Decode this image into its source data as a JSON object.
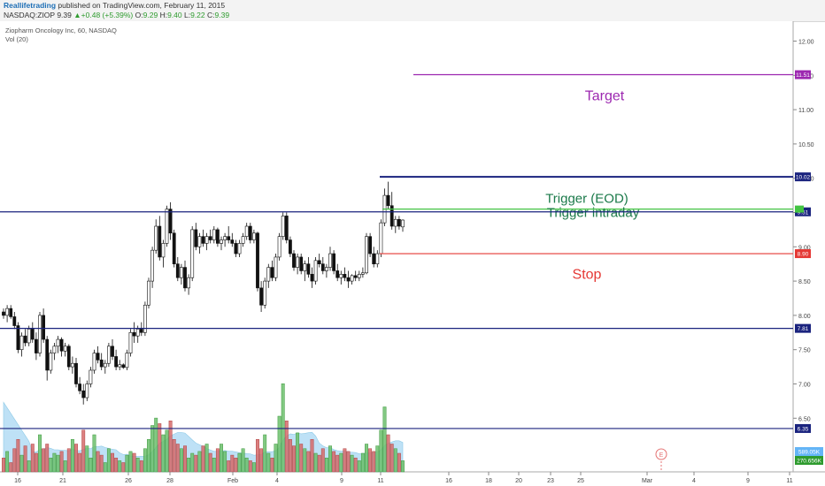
{
  "header": {
    "publisher": "Reallifetrading",
    "published_text": "published on TradingView.com, February 11, 2015",
    "symbol": "NASDAQ:ZIOP",
    "last": "9.39",
    "change": "+0.48 (+5.39%)",
    "o_label": "O:",
    "o_val": "9.29",
    "h_label": "H:",
    "h_val": "9.40",
    "l_label": "L:",
    "l_val": "9.22",
    "c_label": "C:",
    "c_val": "9.39"
  },
  "legend": {
    "instrument": "Ziopharm Oncology Inc, 60, NASDAQ",
    "volume": "Vol (20)"
  },
  "chart_data": {
    "type": "candlestick",
    "ylim": [
      6.05,
      12.5
    ],
    "yticks": [
      "12.00",
      "11.50",
      "11.00",
      "10.50",
      "10.00",
      "9.50",
      "9.00",
      "8.50",
      "8.00",
      "7.50",
      "7.00",
      "6.50"
    ],
    "xticks": [
      "16",
      "21",
      "26",
      "28",
      "Feb",
      "4",
      "9",
      "11",
      "16",
      "18",
      "20",
      "23",
      "25",
      "Mar",
      "4",
      "9",
      "11"
    ],
    "levels": [
      {
        "label": "Target",
        "price": 11.51,
        "badge": "11.51",
        "color": "#9c27b0"
      },
      {
        "label": "Trigger (EOD)",
        "price": 10.02,
        "badge": "10.02",
        "color": "#1a237e"
      },
      {
        "label": "Trigger intraday",
        "price": 9.55,
        "badge": "",
        "color": "#43c443"
      },
      {
        "label": "",
        "price": 9.51,
        "badge": "9.51",
        "color": "#1a237e"
      },
      {
        "label": "Stop",
        "price": 8.9,
        "badge": "8.90",
        "color": "#e53935"
      },
      {
        "label": "",
        "price": 7.81,
        "badge": "7.81",
        "color": "#1a237e"
      },
      {
        "label": "",
        "price": 6.35,
        "badge": "6.35",
        "color": "#1a237e"
      }
    ],
    "volume_badges": [
      {
        "text": "589.05K",
        "color": "#64b5f6"
      },
      {
        "text": "270.656K",
        "color": "#2e9b2e"
      }
    ],
    "earnings_marker": "E",
    "candles": [
      [
        8.05,
        8.1,
        7.95,
        8.0
      ],
      [
        8.0,
        8.15,
        7.9,
        8.1
      ],
      [
        8.1,
        8.15,
        7.95,
        7.98
      ],
      [
        7.98,
        8.05,
        7.8,
        7.85
      ],
      [
        7.85,
        7.9,
        7.45,
        7.5
      ],
      [
        7.5,
        7.75,
        7.4,
        7.7
      ],
      [
        7.7,
        7.8,
        7.55,
        7.6
      ],
      [
        7.6,
        7.85,
        7.55,
        7.8
      ],
      [
        7.8,
        7.9,
        7.6,
        7.65
      ],
      [
        7.65,
        7.75,
        7.35,
        7.45
      ],
      [
        7.45,
        8.05,
        7.4,
        8.0
      ],
      [
        8.0,
        8.1,
        7.6,
        7.65
      ],
      [
        7.65,
        7.7,
        7.05,
        7.2
      ],
      [
        7.2,
        7.5,
        7.15,
        7.45
      ],
      [
        7.45,
        7.6,
        7.35,
        7.55
      ],
      [
        7.55,
        7.7,
        7.45,
        7.65
      ],
      [
        7.65,
        7.68,
        7.4,
        7.48
      ],
      [
        7.48,
        7.6,
        7.4,
        7.55
      ],
      [
        7.55,
        7.58,
        7.2,
        7.25
      ],
      [
        7.25,
        7.4,
        7.15,
        7.3
      ],
      [
        7.3,
        7.38,
        6.95,
        7.0
      ],
      [
        7.0,
        7.1,
        6.85,
        6.9
      ],
      [
        6.9,
        7.0,
        6.7,
        6.8
      ],
      [
        6.8,
        7.05,
        6.75,
        7.0
      ],
      [
        7.0,
        7.25,
        6.95,
        7.2
      ],
      [
        7.2,
        7.5,
        7.15,
        7.45
      ],
      [
        7.45,
        7.55,
        7.3,
        7.35
      ],
      [
        7.35,
        7.45,
        7.2,
        7.25
      ],
      [
        7.25,
        7.35,
        7.15,
        7.3
      ],
      [
        7.3,
        7.6,
        7.25,
        7.55
      ],
      [
        7.55,
        7.65,
        7.35,
        7.4
      ],
      [
        7.4,
        7.5,
        7.2,
        7.25
      ],
      [
        7.25,
        7.35,
        7.2,
        7.28
      ],
      [
        7.28,
        7.3,
        7.22,
        7.24
      ],
      [
        7.24,
        7.5,
        7.2,
        7.45
      ],
      [
        7.45,
        7.8,
        7.4,
        7.75
      ],
      [
        7.75,
        7.9,
        7.6,
        7.7
      ],
      [
        7.7,
        7.85,
        7.6,
        7.8
      ],
      [
        7.8,
        7.9,
        7.7,
        7.75
      ],
      [
        7.75,
        8.2,
        7.7,
        8.15
      ],
      [
        8.15,
        8.55,
        8.1,
        8.5
      ],
      [
        8.5,
        9.0,
        8.4,
        8.95
      ],
      [
        8.95,
        9.4,
        8.9,
        9.3
      ],
      [
        9.3,
        9.45,
        8.8,
        8.85
      ],
      [
        8.85,
        9.1,
        8.7,
        9.05
      ],
      [
        9.05,
        9.6,
        9.0,
        9.55
      ],
      [
        9.55,
        9.65,
        9.1,
        9.2
      ],
      [
        9.2,
        9.25,
        8.7,
        8.75
      ],
      [
        8.75,
        8.85,
        8.5,
        8.55
      ],
      [
        8.55,
        8.75,
        8.45,
        8.7
      ],
      [
        8.7,
        8.8,
        8.35,
        8.4
      ],
      [
        8.4,
        8.6,
        8.3,
        8.55
      ],
      [
        8.55,
        9.3,
        8.5,
        9.25
      ],
      [
        9.25,
        9.35,
        8.95,
        9.0
      ],
      [
        9.0,
        9.2,
        8.9,
        9.15
      ],
      [
        9.15,
        9.25,
        9.0,
        9.05
      ],
      [
        9.05,
        9.2,
        8.95,
        9.15
      ],
      [
        9.15,
        9.25,
        9.05,
        9.1
      ],
      [
        9.1,
        9.3,
        9.05,
        9.25
      ],
      [
        9.25,
        9.28,
        9.0,
        9.05
      ],
      [
        9.05,
        9.15,
        8.95,
        9.1
      ],
      [
        9.1,
        9.2,
        9.0,
        9.15
      ],
      [
        9.15,
        9.3,
        9.05,
        9.1
      ],
      [
        9.1,
        9.2,
        9.0,
        9.05
      ],
      [
        9.05,
        9.1,
        8.85,
        8.9
      ],
      [
        8.9,
        9.1,
        8.85,
        9.05
      ],
      [
        9.05,
        9.2,
        9.0,
        9.15
      ],
      [
        9.15,
        9.35,
        9.1,
        9.3
      ],
      [
        9.3,
        9.35,
        9.05,
        9.1
      ],
      [
        9.1,
        9.25,
        9.05,
        9.2
      ],
      [
        9.2,
        9.22,
        8.35,
        8.4
      ],
      [
        8.4,
        8.5,
        8.05,
        8.15
      ],
      [
        8.15,
        8.55,
        8.1,
        8.5
      ],
      [
        8.5,
        8.75,
        8.4,
        8.7
      ],
      [
        8.7,
        8.8,
        8.5,
        8.55
      ],
      [
        8.55,
        8.9,
        8.5,
        8.85
      ],
      [
        8.85,
        9.2,
        8.8,
        9.15
      ],
      [
        9.15,
        9.5,
        9.1,
        9.45
      ],
      [
        9.45,
        9.5,
        9.05,
        9.1
      ],
      [
        9.1,
        9.15,
        8.85,
        8.9
      ],
      [
        8.9,
        8.95,
        8.65,
        8.7
      ],
      [
        8.7,
        8.9,
        8.6,
        8.85
      ],
      [
        8.85,
        8.9,
        8.6,
        8.65
      ],
      [
        8.65,
        8.8,
        8.5,
        8.75
      ],
      [
        8.75,
        8.85,
        8.55,
        8.6
      ],
      [
        8.6,
        8.7,
        8.4,
        8.5
      ],
      [
        8.5,
        8.85,
        8.45,
        8.8
      ],
      [
        8.8,
        8.9,
        8.7,
        8.75
      ],
      [
        8.75,
        8.85,
        8.6,
        8.65
      ],
      [
        8.65,
        8.75,
        8.55,
        8.7
      ],
      [
        8.7,
        9.0,
        8.65,
        8.9
      ],
      [
        8.9,
        8.95,
        8.6,
        8.65
      ],
      [
        8.65,
        8.75,
        8.5,
        8.55
      ],
      [
        8.55,
        8.65,
        8.45,
        8.6
      ],
      [
        8.6,
        8.7,
        8.5,
        8.55
      ],
      [
        8.55,
        8.65,
        8.4,
        8.5
      ],
      [
        8.5,
        8.6,
        8.45,
        8.58
      ],
      [
        8.58,
        8.65,
        8.5,
        8.55
      ],
      [
        8.55,
        8.65,
        8.5,
        8.6
      ],
      [
        8.6,
        8.7,
        8.55,
        8.62
      ],
      [
        8.62,
        9.2,
        8.6,
        9.15
      ],
      [
        9.15,
        9.2,
        8.85,
        8.9
      ],
      [
        8.9,
        9.0,
        8.7,
        8.75
      ],
      [
        8.75,
        8.95,
        8.7,
        8.9
      ],
      [
        8.9,
        9.4,
        8.85,
        9.35
      ],
      [
        9.35,
        9.85,
        9.3,
        9.75
      ],
      [
        9.75,
        9.95,
        9.55,
        9.6
      ],
      [
        9.6,
        9.8,
        9.25,
        9.3
      ],
      [
        9.3,
        9.45,
        9.2,
        9.4
      ],
      [
        9.4,
        9.45,
        9.25,
        9.3
      ],
      [
        9.29,
        9.4,
        9.22,
        9.39
      ]
    ],
    "volume": [
      0.15,
      0.22,
      0.1,
      0.25,
      0.35,
      0.18,
      0.28,
      0.12,
      0.3,
      0.2,
      0.4,
      0.25,
      0.3,
      0.15,
      0.2,
      0.18,
      0.22,
      0.12,
      0.25,
      0.35,
      0.3,
      0.2,
      0.45,
      0.28,
      0.15,
      0.4,
      0.22,
      0.18,
      0.1,
      0.25,
      0.2,
      0.15,
      0.12,
      0.1,
      0.18,
      0.22,
      0.2,
      0.15,
      0.12,
      0.25,
      0.35,
      0.5,
      0.58,
      0.52,
      0.4,
      0.45,
      0.55,
      0.35,
      0.3,
      0.25,
      0.28,
      0.15,
      0.2,
      0.18,
      0.22,
      0.28,
      0.3,
      0.2,
      0.15,
      0.25,
      0.3,
      0.22,
      0.12,
      0.18,
      0.15,
      0.2,
      0.25,
      0.15,
      0.12,
      0.1,
      0.35,
      0.25,
      0.4,
      0.2,
      0.15,
      0.3,
      0.6,
      0.95,
      0.55,
      0.35,
      0.28,
      0.42,
      0.3,
      0.25,
      0.22,
      0.35,
      0.2,
      0.18,
      0.25,
      0.15,
      0.28,
      0.22,
      0.18,
      0.2,
      0.25,
      0.22,
      0.18,
      0.15,
      0.12,
      0.2,
      0.3,
      0.25,
      0.22,
      0.28,
      0.45,
      0.7,
      0.4,
      0.3,
      0.25,
      0.2,
      0.12
    ]
  }
}
